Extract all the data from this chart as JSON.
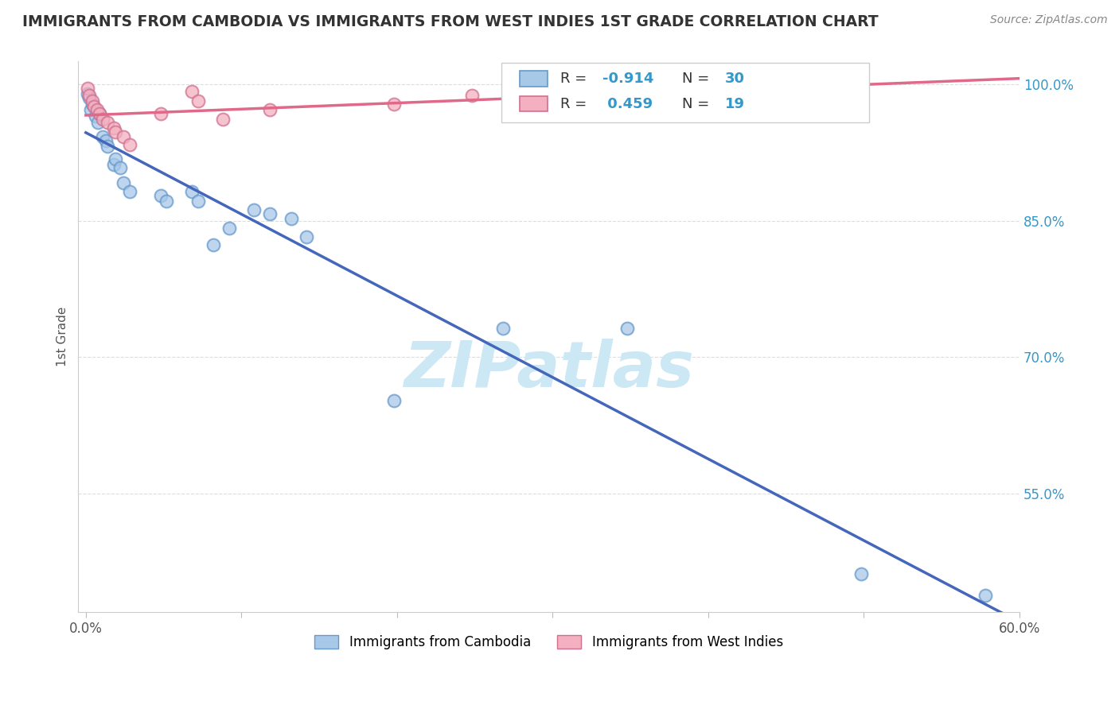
{
  "title": "IMMIGRANTS FROM CAMBODIA VS IMMIGRANTS FROM WEST INDIES 1ST GRADE CORRELATION CHART",
  "source_text": "Source: ZipAtlas.com",
  "xlabel_cambodia": "Immigrants from Cambodia",
  "xlabel_westindies": "Immigrants from West Indies",
  "ylabel": "1st Grade",
  "xlim": [
    -0.005,
    0.6
  ],
  "ylim": [
    0.42,
    1.025
  ],
  "xtick_vals": [
    0.0,
    0.1,
    0.2,
    0.3,
    0.4,
    0.5,
    0.6
  ],
  "ytick_vals": [
    0.55,
    0.7,
    0.85,
    1.0
  ],
  "ytick_labels": [
    "55.0%",
    "70.0%",
    "85.0%",
    "100.0%"
  ],
  "R_cambodia": -0.914,
  "N_cambodia": 30,
  "R_westindies": 0.459,
  "N_westindies": 19,
  "color_cambodia_fill": "#a8c8e8",
  "color_cambodia_edge": "#6699cc",
  "color_cambodia_line": "#4466bb",
  "color_westindies_fill": "#f4b0c0",
  "color_westindies_edge": "#d07090",
  "color_westindies_line": "#e06888",
  "watermark_color": "#cce8f4",
  "cambodia_x": [
    0.001,
    0.002,
    0.003,
    0.004,
    0.006,
    0.008,
    0.009,
    0.011,
    0.013,
    0.014,
    0.018,
    0.019,
    0.022,
    0.024,
    0.028,
    0.048,
    0.052,
    0.068,
    0.072,
    0.082,
    0.092,
    0.108,
    0.118,
    0.132,
    0.142,
    0.198,
    0.268,
    0.348,
    0.498,
    0.578
  ],
  "cambodia_y": [
    0.99,
    0.985,
    0.972,
    0.978,
    0.965,
    0.958,
    0.968,
    0.942,
    0.938,
    0.932,
    0.912,
    0.918,
    0.908,
    0.892,
    0.882,
    0.878,
    0.872,
    0.882,
    0.872,
    0.824,
    0.842,
    0.862,
    0.858,
    0.852,
    0.832,
    0.652,
    0.732,
    0.732,
    0.462,
    0.438
  ],
  "westindies_x": [
    0.001,
    0.002,
    0.004,
    0.005,
    0.007,
    0.009,
    0.011,
    0.014,
    0.018,
    0.019,
    0.024,
    0.028,
    0.048,
    0.068,
    0.072,
    0.088,
    0.118,
    0.198,
    0.248
  ],
  "westindies_y": [
    0.996,
    0.988,
    0.982,
    0.976,
    0.972,
    0.968,
    0.962,
    0.958,
    0.952,
    0.948,
    0.942,
    0.934,
    0.968,
    0.992,
    0.982,
    0.962,
    0.972,
    0.978,
    0.988
  ]
}
